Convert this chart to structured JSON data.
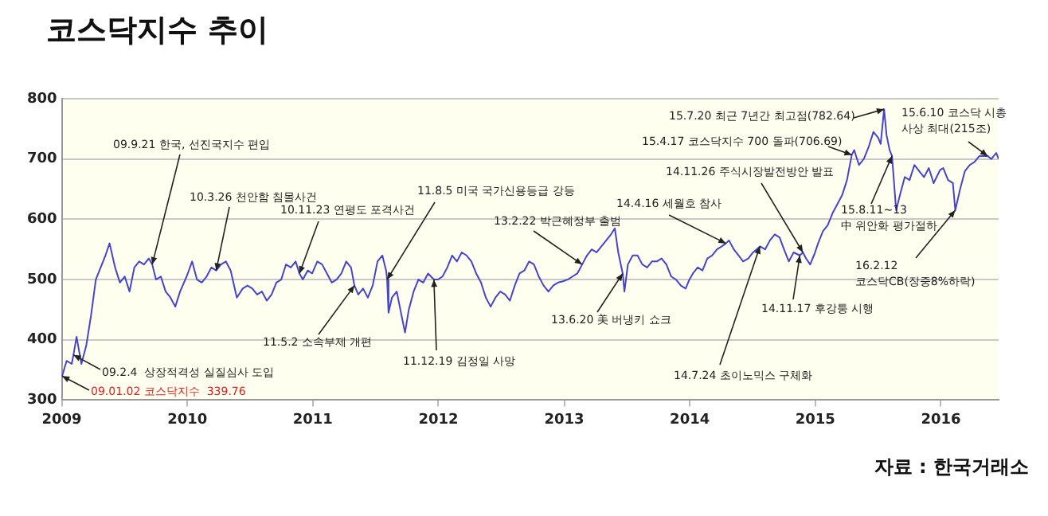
{
  "chart_data": {
    "type": "line",
    "title": "코스닥지수 추이",
    "xlim": [
      "2009-01-01",
      "2016-06-17"
    ],
    "xticks": [
      "2009",
      "2010",
      "2011",
      "2012",
      "2013",
      "2014",
      "2015",
      "2016"
    ],
    "ylim": [
      300,
      800
    ],
    "yticks": [
      300,
      400,
      500,
      600,
      700,
      800
    ],
    "grid": "y",
    "legend": false,
    "marker": "none",
    "line_style": "solid",
    "x": [
      "2009-01-02",
      "2009-01-15",
      "2009-01-30",
      "2009-02-04",
      "2009-02-13",
      "2009-02-27",
      "2009-03-13",
      "2009-03-27",
      "2009-04-10",
      "2009-04-24",
      "2009-05-08",
      "2009-05-20",
      "2009-06-05",
      "2009-06-19",
      "2009-07-03",
      "2009-07-17",
      "2009-07-31",
      "2009-08-14",
      "2009-08-28",
      "2009-09-11",
      "2009-09-21",
      "2009-10-02",
      "2009-10-16",
      "2009-10-30",
      "2009-11-13",
      "2009-11-27",
      "2009-12-11",
      "2009-12-30",
      "2010-01-15",
      "2010-01-29",
      "2010-02-12",
      "2010-02-26",
      "2010-03-12",
      "2010-03-26",
      "2010-04-09",
      "2010-04-23",
      "2010-05-07",
      "2010-05-25",
      "2010-06-11",
      "2010-06-25",
      "2010-07-09",
      "2010-07-23",
      "2010-08-06",
      "2010-08-20",
      "2010-09-03",
      "2010-09-17",
      "2010-10-01",
      "2010-10-15",
      "2010-10-29",
      "2010-11-12",
      "2010-11-23",
      "2010-12-03",
      "2010-12-17",
      "2010-12-30",
      "2011-01-14",
      "2011-01-28",
      "2011-02-11",
      "2011-02-25",
      "2011-03-11",
      "2011-03-25",
      "2011-04-08",
      "2011-04-22",
      "2011-05-02",
      "2011-05-13",
      "2011-05-27",
      "2011-06-10",
      "2011-06-24",
      "2011-07-08",
      "2011-07-22",
      "2011-08-02",
      "2011-08-05",
      "2011-08-09",
      "2011-08-19",
      "2011-09-02",
      "2011-09-16",
      "2011-09-26",
      "2011-10-07",
      "2011-10-21",
      "2011-11-04",
      "2011-11-18",
      "2011-12-02",
      "2011-12-19",
      "2011-12-30",
      "2012-01-13",
      "2012-01-27",
      "2012-02-10",
      "2012-02-24",
      "2012-03-09",
      "2012-03-23",
      "2012-04-06",
      "2012-04-20",
      "2012-05-04",
      "2012-05-18",
      "2012-06-01",
      "2012-06-15",
      "2012-06-29",
      "2012-07-13",
      "2012-07-27",
      "2012-08-10",
      "2012-08-24",
      "2012-09-07",
      "2012-09-21",
      "2012-10-05",
      "2012-10-19",
      "2012-11-02",
      "2012-11-16",
      "2012-11-30",
      "2012-12-14",
      "2012-12-28",
      "2013-01-11",
      "2013-01-25",
      "2013-02-08",
      "2013-02-22",
      "2013-03-08",
      "2013-03-22",
      "2013-04-05",
      "2013-04-19",
      "2013-05-03",
      "2013-05-17",
      "2013-05-28",
      "2013-06-07",
      "2013-06-20",
      "2013-06-25",
      "2013-07-05",
      "2013-07-19",
      "2013-08-02",
      "2013-08-16",
      "2013-08-30",
      "2013-09-13",
      "2013-09-27",
      "2013-10-11",
      "2013-10-25",
      "2013-11-08",
      "2013-11-22",
      "2013-12-06",
      "2013-12-20",
      "2013-12-30",
      "2014-01-10",
      "2014-01-24",
      "2014-02-07",
      "2014-02-21",
      "2014-03-07",
      "2014-03-21",
      "2014-04-04",
      "2014-04-16",
      "2014-04-25",
      "2014-05-09",
      "2014-05-23",
      "2014-06-05",
      "2014-06-20",
      "2014-07-04",
      "2014-07-24",
      "2014-08-08",
      "2014-08-22",
      "2014-09-05",
      "2014-09-19",
      "2014-10-02",
      "2014-10-16",
      "2014-10-30",
      "2014-11-17",
      "2014-11-26",
      "2014-12-05",
      "2014-12-17",
      "2014-12-30",
      "2015-01-09",
      "2015-01-23",
      "2015-02-06",
      "2015-02-20",
      "2015-03-06",
      "2015-03-20",
      "2015-04-03",
      "2015-04-17",
      "2015-04-24",
      "2015-05-08",
      "2015-05-22",
      "2015-06-05",
      "2015-06-19",
      "2015-07-03",
      "2015-07-10",
      "2015-07-20",
      "2015-07-27",
      "2015-08-05",
      "2015-08-12",
      "2015-08-24",
      "2015-09-04",
      "2015-09-18",
      "2015-10-02",
      "2015-10-16",
      "2015-10-30",
      "2015-11-13",
      "2015-11-27",
      "2015-12-11",
      "2015-12-30",
      "2016-01-08",
      "2016-01-22",
      "2016-02-05",
      "2016-02-12",
      "2016-02-26",
      "2016-03-11",
      "2016-03-25",
      "2016-04-08",
      "2016-04-22",
      "2016-05-06",
      "2016-05-16",
      "2016-05-27",
      "2016-06-10",
      "2016-06-17"
    ],
    "series": [
      {
        "color": "#4444cc",
        "values": [
          339.76,
          365,
          360,
          375,
          405,
          360,
          390,
          440,
          500,
          520,
          540,
          560,
          520,
          495,
          505,
          480,
          520,
          530,
          525,
          535,
          525,
          500,
          505,
          480,
          470,
          455,
          480,
          505,
          530,
          500,
          495,
          505,
          520,
          515,
          525,
          530,
          515,
          470,
          485,
          490,
          485,
          475,
          480,
          465,
          475,
          495,
          500,
          525,
          520,
          530,
          510,
          500,
          515,
          510,
          530,
          525,
          510,
          495,
          500,
          510,
          530,
          520,
          490,
          475,
          485,
          470,
          490,
          530,
          540,
          515,
          500,
          445,
          470,
          480,
          440,
          412,
          450,
          480,
          500,
          495,
          510,
          500,
          500,
          505,
          520,
          540,
          530,
          545,
          540,
          530,
          510,
          495,
          470,
          455,
          470,
          480,
          475,
          465,
          490,
          510,
          515,
          530,
          525,
          505,
          490,
          480,
          490,
          495,
          497,
          500,
          505,
          510,
          525,
          540,
          550,
          545,
          555,
          565,
          575,
          585,
          545,
          510,
          480,
          525,
          540,
          540,
          525,
          520,
          530,
          530,
          535,
          525,
          505,
          500,
          490,
          485,
          499,
          510,
          520,
          515,
          535,
          540,
          550,
          555,
          560,
          565,
          550,
          540,
          530,
          535,
          545,
          555,
          550,
          565,
          575,
          570,
          550,
          530,
          545,
          540,
          545,
          535,
          525,
          543,
          560,
          580,
          590,
          610,
          625,
          640,
          665,
          706.69,
          715,
          690,
          700,
          720,
          745,
          735,
          725,
          782.64,
          740,
          715,
          705,
          615,
          640,
          670,
          665,
          690,
          680,
          670,
          685,
          660,
          682,
          685,
          665,
          660,
          615,
          650,
          680,
          690,
          695,
          705,
          705,
          705,
          700,
          710,
          700
        ]
      }
    ],
    "annotations": [
      {
        "text": "09.01.02 코스닥지수  339.76",
        "x": "2009-01-02",
        "y": 339.76
      },
      {
        "text": "09.2.4  상장적격성 실질심사 도입",
        "x": "2009-02-04",
        "y": 375
      },
      {
        "text": "09.9.21 한국, 선진국지수 편입",
        "x": "2009-09-21",
        "y": 525
      },
      {
        "text": "10.3.26 천안함 침몰사건",
        "x": "2010-03-26",
        "y": 515
      },
      {
        "text": "10.11.23 연평도 포격사건",
        "x": "2010-11-23",
        "y": 510
      },
      {
        "text": "11.8.5 미국 국가신용등급 강등",
        "x": "2011-08-05",
        "y": 500
      },
      {
        "text": "11.5.2 소속부제 개편",
        "x": "2011-05-02",
        "y": 490
      },
      {
        "text": "11.12.19 김정일 사망",
        "x": "2011-12-19",
        "y": 500
      },
      {
        "text": "13.2.22 박근혜정부 출범",
        "x": "2013-02-22",
        "y": 525
      },
      {
        "text": "13.6.20 美 버냉키 쇼크",
        "x": "2013-06-20",
        "y": 510
      },
      {
        "text": "14.4.16 세월호 참사",
        "x": "2014-04-16",
        "y": 560
      },
      {
        "text": "14.7.24 초이노믹스 구체화",
        "x": "2014-07-24",
        "y": 555
      },
      {
        "text": "14.11.17 후강퉁 시행",
        "x": "2014-11-17",
        "y": 540
      },
      {
        "text": "14.11.26 주식시장발전방안 발표",
        "x": "2014-11-26",
        "y": 545
      },
      {
        "text": "15.4.17 코스닥지수 700 돌파(706.69)",
        "x": "2015-04-17",
        "y": 706.69
      },
      {
        "text": "15.7.20 최근 7년간 최고점(782.64)",
        "x": "2015-07-20",
        "y": 782.64
      },
      {
        "text": "15.6.10 코스닥 시총\n사상 최대(215조)",
        "x": "2016-05-16",
        "y": 705
      },
      {
        "text": "15.8.11~13\n中 위안화 평가절하",
        "x": "2015-08-12",
        "y": 705
      },
      {
        "text": "16.2.12\n코스닥CB(장중8%하락)",
        "x": "2016-02-12",
        "y": 615
      },
      "자료 : 한국거래소"
    ]
  }
}
